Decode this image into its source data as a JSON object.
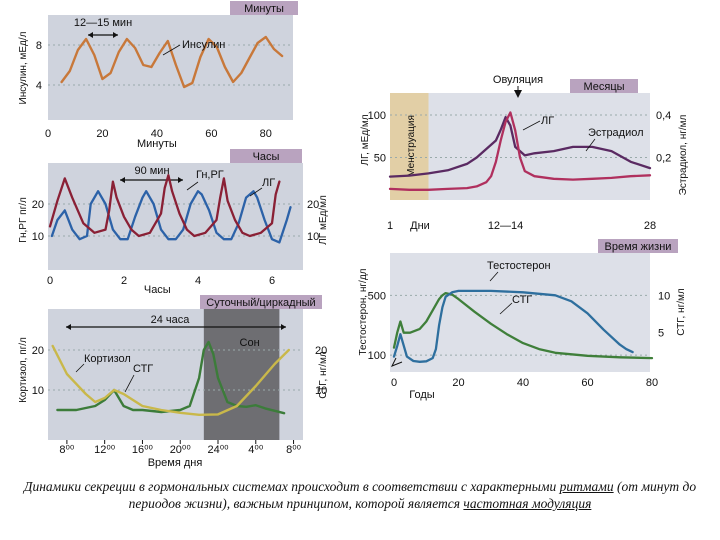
{
  "colors": {
    "panel_bg": "#cfd3dd",
    "panel_bg_light": "#dde0e8",
    "tag_bg": "#b9a3bf",
    "night_shade": "#6e6e72",
    "menstruation_shade": "#e2cfa6",
    "insulin": "#c8783a",
    "gnrh": "#8a2035",
    "lh_hours": "#2c62a8",
    "cortisol": "#c9b84a",
    "stg": "#3c7c3a",
    "lh_month": "#b0305e",
    "estradiol": "#5a2a62",
    "testosterone": "#2e6f9e",
    "stg_life": "#3f7f3a"
  },
  "caption": {
    "part1": "Динамики секреции в гормональных системах происходит в соответствии с характерными ",
    "word_rhythms": "ритмами",
    "part2": " (от минут до периодов жизни), важным принципом, которой является ",
    "word_freq": "частотная модуляция"
  },
  "chart_data": [
    {
      "id": "minutes",
      "type": "line",
      "tag": "Минуты",
      "xlabel": "Минуты",
      "ylabel": "Инсулин, мЕд/л",
      "xlim": [
        0,
        90
      ],
      "ylim": [
        2,
        10
      ],
      "x_ticks": [
        "0",
        "20",
        "40",
        "60",
        "80"
      ],
      "y_ticks": [
        "4",
        "8"
      ],
      "annotations": [
        "12—15 мин"
      ],
      "series": [
        {
          "name": "Инсулин",
          "x": [
            5,
            8,
            11,
            14,
            17,
            20,
            23,
            26,
            29,
            32,
            35,
            38,
            41,
            44,
            47,
            50,
            53,
            56,
            59,
            62,
            65,
            68,
            71,
            74,
            77,
            80,
            83,
            86
          ],
          "y": [
            4.3,
            5.4,
            7.5,
            8.6,
            7.0,
            4.6,
            5.2,
            7.3,
            8.6,
            7.7,
            6.0,
            5.8,
            7.2,
            8.4,
            6.0,
            3.8,
            4.2,
            6.8,
            8.6,
            7.8,
            5.8,
            4.3,
            5.2,
            6.7,
            8.2,
            8.8,
            7.6,
            6.9
          ]
        }
      ]
    },
    {
      "id": "hours",
      "type": "line",
      "tag": "Часы",
      "xlabel": "Часы",
      "ylabel_left": "Гн,РГ пг/л",
      "ylabel_right": "ЛГ мЕд/мл",
      "xlim": [
        -0.2,
        6.8
      ],
      "ylim_left": [
        0,
        30
      ],
      "ylim_right": [
        0,
        30
      ],
      "x_ticks": [
        "0",
        "2",
        "4",
        "6"
      ],
      "y_ticks_left": [
        "10",
        "20"
      ],
      "y_ticks_right": [
        "10",
        "20"
      ],
      "annotations": [
        "90 мин"
      ],
      "series": [
        {
          "name": "Гн,РГ",
          "x": [
            0.0,
            0.2,
            0.4,
            0.6,
            0.9,
            1.2,
            1.5,
            1.6,
            1.7,
            1.8,
            2.0,
            2.2,
            2.4,
            2.7,
            3.0,
            3.1,
            3.2,
            3.3,
            3.5,
            3.7,
            3.9,
            4.2,
            4.5,
            4.6,
            4.7,
            4.8,
            5.0,
            5.2,
            5.4,
            5.7,
            6.0,
            6.1,
            6.2
          ],
          "y": [
            13,
            21,
            28,
            22,
            14,
            11,
            12,
            18,
            27,
            22,
            16,
            12,
            10,
            11,
            17,
            25,
            29,
            24,
            17,
            12,
            10,
            11,
            15,
            22,
            28,
            21,
            15,
            11,
            10,
            11,
            14,
            23,
            27
          ]
        },
        {
          "name": "ЛГ",
          "x": [
            0.05,
            0.2,
            0.4,
            0.6,
            0.8,
            1.0,
            1.1,
            1.3,
            1.5,
            1.7,
            1.9,
            2.1,
            2.3,
            2.5,
            2.6,
            2.8,
            3.0,
            3.2,
            3.4,
            3.6,
            3.8,
            4.0,
            4.1,
            4.3,
            4.5,
            4.7,
            4.9,
            5.1,
            5.3,
            5.5,
            5.6,
            5.8,
            6.0,
            6.2,
            6.4,
            6.5
          ],
          "y": [
            10,
            15,
            18,
            12,
            9,
            10,
            20,
            24,
            20,
            12,
            9,
            9,
            16,
            22,
            24,
            20,
            12,
            9,
            9,
            12,
            20,
            24,
            23,
            18,
            11,
            9,
            9,
            14,
            22,
            24,
            22,
            15,
            9,
            8,
            15,
            19
          ]
        }
      ]
    },
    {
      "id": "circadian",
      "type": "line",
      "tag": "Суточный/циркадный",
      "xlabel": "Время дня",
      "ylabel_left": "Кортизол, пг/л",
      "ylabel_right": "СТГ, нг/мл",
      "x_ticks": [
        "8⁰⁰",
        "12⁰⁰",
        "16⁰⁰",
        "20⁰⁰",
        "24⁰⁰",
        "4⁰⁰",
        "8⁰⁰"
      ],
      "y_ticks_left": [
        "10",
        "20"
      ],
      "y_ticks_right": [
        "10",
        "20"
      ],
      "xlim": [
        6,
        33
      ],
      "ylim_left": [
        0,
        28
      ],
      "annotations": [
        "24 часа",
        "Сон"
      ],
      "sleep_interval": [
        22.5,
        30.5
      ],
      "series": [
        {
          "name": "Кортизол",
          "x": [
            6.5,
            8,
            10,
            11,
            12,
            13,
            14,
            15,
            16,
            18,
            20,
            22,
            24,
            26,
            28,
            30,
            31.5
          ],
          "y": [
            21,
            14,
            9,
            7,
            8,
            10,
            9,
            7.5,
            6,
            5,
            4.3,
            3.8,
            3.9,
            6,
            11,
            16.5,
            20
          ]
        },
        {
          "name": "СТГ",
          "x": [
            7,
            9,
            11,
            12,
            13,
            14,
            15,
            16,
            18,
            20,
            21,
            22,
            22.5,
            23,
            23.5,
            24,
            25,
            26,
            27,
            28,
            29,
            30,
            31
          ],
          "y": [
            5,
            5,
            6,
            7.5,
            10,
            6,
            5,
            5,
            4.5,
            5,
            6,
            13,
            20,
            22,
            19,
            13,
            7,
            6,
            5.8,
            6.2,
            5.4,
            4.8,
            4.2
          ]
        }
      ]
    },
    {
      "id": "months",
      "type": "line",
      "tag": "Месяцы",
      "xlabel": "Дни",
      "ylabel_left": "ЛГ, мЕд/мл",
      "ylabel_right": "Эстрадиол, нг/мл",
      "xlim": [
        1,
        28
      ],
      "ylim_left": [
        0,
        120
      ],
      "ylim_right": [
        0,
        0.48
      ],
      "x_ticks": [
        "1",
        "12—14",
        "28"
      ],
      "y_ticks_left": [
        "50",
        "100"
      ],
      "y_ticks_right": [
        "0,2",
        "0,4"
      ],
      "menstruation_interval": [
        1,
        5
      ],
      "shaded_label": "Менструация",
      "annotations": [
        "Овуляция"
      ],
      "series": [
        {
          "name": "ЛГ",
          "x": [
            1,
            3,
            5,
            7,
            9,
            10,
            11,
            11.5,
            12,
            12.5,
            13,
            13.5,
            14,
            14.5,
            15,
            16,
            18,
            20,
            22,
            24,
            26,
            28
          ],
          "y": [
            13,
            12,
            12,
            13,
            14,
            16,
            21,
            28,
            45,
            70,
            92,
            103,
            82,
            50,
            34,
            28,
            25,
            24,
            25,
            26,
            28,
            29
          ]
        },
        {
          "name": "Эстрадиол",
          "x": [
            1,
            3,
            5,
            7,
            9,
            10,
            11,
            12,
            12.5,
            13,
            13.5,
            14,
            15,
            16,
            18,
            20,
            22,
            24,
            26,
            28
          ],
          "y": [
            0.11,
            0.115,
            0.125,
            0.14,
            0.17,
            0.2,
            0.24,
            0.28,
            0.33,
            0.39,
            0.35,
            0.25,
            0.21,
            0.22,
            0.23,
            0.25,
            0.25,
            0.23,
            0.18,
            0.15
          ]
        }
      ]
    },
    {
      "id": "lifetime",
      "type": "line",
      "tag": "Время жизни",
      "xlabel": "Годы",
      "ylabel_left": "Тестостерон, нг/дл",
      "ylabel_right": "СТГ, нг/мл",
      "xlim": [
        -1,
        82
      ],
      "ylim_left": [
        0,
        750
      ],
      "ylim_right": [
        0,
        15
      ],
      "x_ticks": [
        "0",
        "20",
        "40",
        "60",
        "80"
      ],
      "y_ticks_left": [
        "100",
        "500"
      ],
      "y_ticks_right": [
        "5",
        "10"
      ],
      "series": [
        {
          "name": "Тестостерон",
          "x": [
            0,
            1,
            2,
            4,
            6,
            8,
            10,
            12,
            13,
            14,
            15,
            16,
            18,
            20,
            30,
            40,
            50,
            55,
            60,
            65,
            70,
            72,
            74
          ],
          "y": [
            90,
            160,
            240,
            90,
            60,
            55,
            58,
            80,
            140,
            300,
            420,
            490,
            520,
            530,
            530,
            520,
            500,
            460,
            380,
            270,
            170,
            140,
            120
          ]
        },
        {
          "name": "СТГ",
          "x": [
            0,
            1,
            2,
            3,
            5,
            8,
            10,
            12,
            14,
            15,
            16,
            18,
            20,
            25,
            30,
            35,
            40,
            45,
            50,
            60,
            70,
            80
          ],
          "y": [
            3,
            5,
            6.5,
            5,
            5,
            5.5,
            6.5,
            8,
            9.5,
            10,
            10.3,
            10.1,
            9.5,
            7.8,
            6.2,
            4.8,
            3.6,
            2.8,
            2.3,
            1.9,
            1.7,
            1.6
          ]
        }
      ]
    }
  ]
}
